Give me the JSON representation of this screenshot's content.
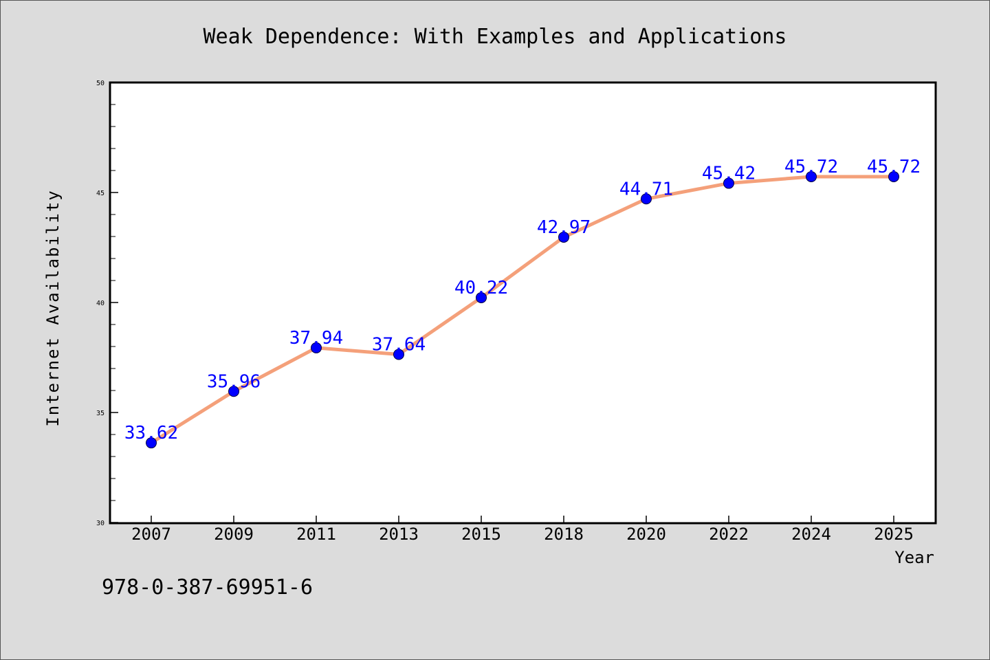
{
  "chart_data": {
    "type": "line",
    "title": "Weak Dependence: With Examples and Applications",
    "xlabel": "Year",
    "ylabel": "Internet Availability",
    "categories": [
      "2007",
      "2009",
      "2011",
      "2013",
      "2015",
      "2018",
      "2020",
      "2022",
      "2024",
      "2025"
    ],
    "series": [
      {
        "values": [
          33.62,
          35.96,
          37.94,
          37.64,
          40.22,
          42.97,
          44.71,
          45.42,
          45.72,
          45.72
        ],
        "data_labels": [
          "33.62",
          "35.96",
          "37.94",
          "37.64",
          "40.22",
          "42.97",
          "44.71",
          "45.42",
          "45.72",
          "45.72"
        ],
        "line_color": "#f4a07a",
        "marker_color": "#0000ff"
      }
    ],
    "ylim": [
      30,
      50
    ],
    "yticks": [
      "30",
      "35",
      "40",
      "45",
      "50"
    ],
    "grid": false,
    "legend": "none"
  },
  "footer": {
    "text": "978-0-387-69951-6"
  },
  "colors": {
    "background": "#dcdcdc",
    "plot_background": "#ffffff",
    "data_label": "#0000ff"
  }
}
